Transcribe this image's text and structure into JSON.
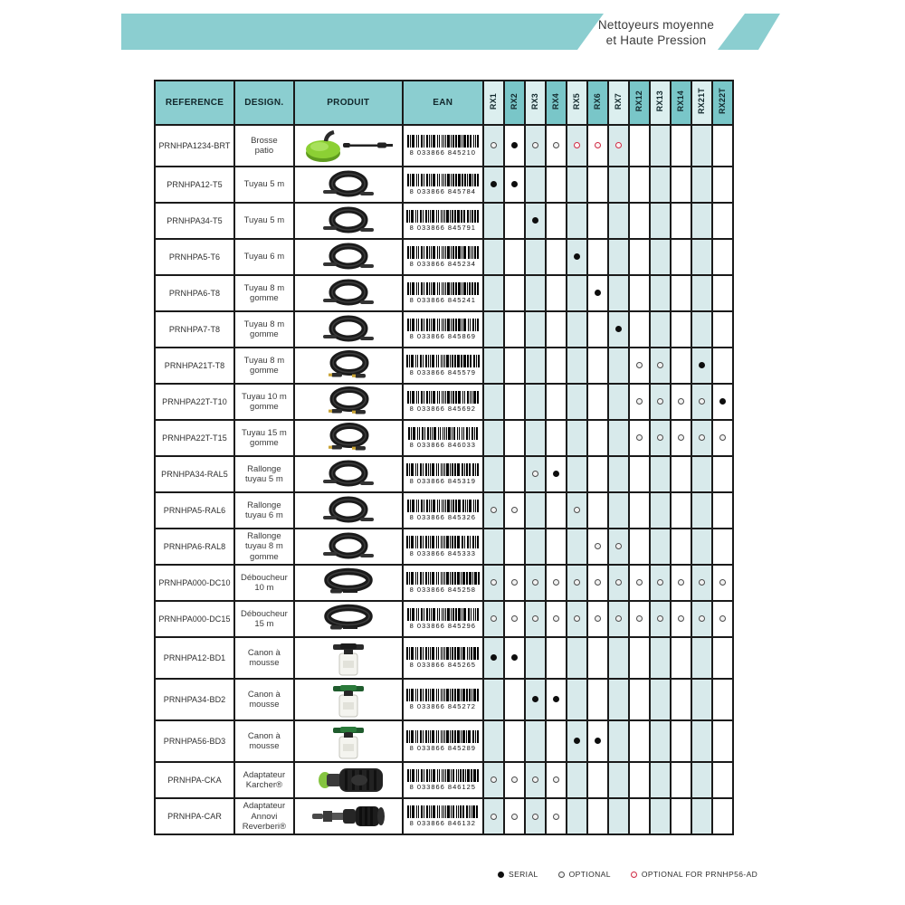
{
  "banner": {
    "title_line1": "Nettoyeurs moyenne",
    "title_line2": "et Haute Pression"
  },
  "colors": {
    "banner_teal": "#8bced0",
    "header_teal": "#8bced0",
    "rx_header_dark": "#79c6c8",
    "rx_header_light": "#dcefef",
    "column_stripe": "#d8eaeb",
    "marker_red": "#cf2c46",
    "marker_black": "#0e0e0e"
  },
  "table": {
    "headers": {
      "reference": "REFERENCE",
      "design": "DESIGN.",
      "produit": "PRODUIT",
      "ean": "EAN"
    },
    "rx_columns": [
      "RX1",
      "RX2",
      "RX3",
      "RX4",
      "RX5",
      "RX6",
      "RX7",
      "RX12",
      "RX13",
      "RX14",
      "RX21T",
      "RX22T"
    ],
    "rows": [
      {
        "reference": "PRNHPA1234-BRT",
        "design": "Brosse patio",
        "image": "patio-brush",
        "ean": "8 033866 845210",
        "marks": [
          "optional",
          "serial",
          "optional",
          "optional",
          "optional-ad",
          "optional-ad",
          "optional-ad",
          "",
          "",
          "",
          "",
          ""
        ]
      },
      {
        "reference": "PRNHPA12-T5",
        "design": "Tuyau 5 m",
        "image": "hose-coil",
        "ean": "8 033866 845784",
        "marks": [
          "serial",
          "serial",
          "",
          "",
          "",
          "",
          "",
          "",
          "",
          "",
          "",
          ""
        ]
      },
      {
        "reference": "PRNHPA34-T5",
        "design": "Tuyau 5 m",
        "image": "hose-coil",
        "ean": "8 033866 845791",
        "marks": [
          "",
          "",
          "serial",
          "",
          "",
          "",
          "",
          "",
          "",
          "",
          "",
          ""
        ]
      },
      {
        "reference": "PRNHPA5-T6",
        "design": "Tuyau 6 m",
        "image": "hose-coil",
        "ean": "8 033866 845234",
        "marks": [
          "",
          "",
          "",
          "",
          "serial",
          "",
          "",
          "",
          "",
          "",
          "",
          ""
        ]
      },
      {
        "reference": "PRNHPA6-T8",
        "design": "Tuyau 8 m gomme",
        "image": "hose-coil",
        "ean": "8 033866 845241",
        "marks": [
          "",
          "",
          "",
          "",
          "",
          "serial",
          "",
          "",
          "",
          "",
          "",
          ""
        ]
      },
      {
        "reference": "PRNHPA7-T8",
        "design": "Tuyau 8 m gomme",
        "image": "hose-coil",
        "ean": "8 033866 845869",
        "marks": [
          "",
          "",
          "",
          "",
          "",
          "",
          "serial",
          "",
          "",
          "",
          "",
          ""
        ]
      },
      {
        "reference": "PRNHPA21T-T8",
        "design": "Tuyau 8 m gomme",
        "image": "hose-coil-t",
        "ean": "8 033866 845579",
        "marks": [
          "",
          "",
          "",
          "",
          "",
          "",
          "",
          "optional",
          "optional",
          "",
          "serial",
          ""
        ]
      },
      {
        "reference": "PRNHPA22T-T10",
        "design": "Tuyau 10 m gomme",
        "image": "hose-coil-t",
        "ean": "8 033866 845692",
        "marks": [
          "",
          "",
          "",
          "",
          "",
          "",
          "",
          "optional",
          "optional",
          "optional",
          "optional",
          "serial"
        ]
      },
      {
        "reference": "PRNHPA22T-T15",
        "design": "Tuyau 15 m gomme",
        "image": "hose-coil-t",
        "ean": "8 033866 846033",
        "marks": [
          "",
          "",
          "",
          "",
          "",
          "",
          "",
          "optional",
          "optional",
          "optional",
          "optional",
          "optional"
        ]
      },
      {
        "reference": "PRNHPA34-RAL5",
        "design": "Rallonge tuyau 5 m",
        "image": "hose-coil",
        "ean": "8 033866 845319",
        "marks": [
          "",
          "",
          "optional",
          "serial",
          "",
          "",
          "",
          "",
          "",
          "",
          "",
          ""
        ]
      },
      {
        "reference": "PRNHPA5-RAL6",
        "design": "Rallonge tuyau 6 m",
        "image": "hose-coil",
        "ean": "8 033866 845326",
        "marks": [
          "optional",
          "optional",
          "",
          "",
          "optional",
          "",
          "",
          "",
          "",
          "",
          "",
          ""
        ]
      },
      {
        "reference": "PRNHPA6-RAL8",
        "design": "Rallonge tuyau 8 m gomme",
        "image": "hose-coil",
        "ean": "8 033866 845333",
        "marks": [
          "",
          "",
          "",
          "",
          "",
          "optional",
          "optional",
          "",
          "",
          "",
          "",
          ""
        ]
      },
      {
        "reference": "PRNHPA000-DC10",
        "design": "Déboucheur 10 m",
        "image": "hose-flat",
        "ean": "8 033866 845258",
        "marks": [
          "optional",
          "optional",
          "optional",
          "optional",
          "optional",
          "optional",
          "optional",
          "optional",
          "optional",
          "optional",
          "optional",
          "optional"
        ]
      },
      {
        "reference": "PRNHPA000-DC15",
        "design": "Déboucheur 15 m",
        "image": "hose-flat",
        "ean": "8 033866 845296",
        "marks": [
          "optional",
          "optional",
          "optional",
          "optional",
          "optional",
          "optional",
          "optional",
          "optional",
          "optional",
          "optional",
          "optional",
          "optional"
        ]
      },
      {
        "reference": "PRNHPA12-BD1",
        "design": "Canon à mousse",
        "image": "foam-cannon",
        "ean": "8 033866 845265",
        "marks": [
          "serial",
          "serial",
          "",
          "",
          "",
          "",
          "",
          "",
          "",
          "",
          "",
          ""
        ]
      },
      {
        "reference": "PRNHPA34-BD2",
        "design": "Canon à mousse",
        "image": "foam-cannon-green",
        "ean": "8 033866 845272",
        "marks": [
          "",
          "",
          "serial",
          "serial",
          "",
          "",
          "",
          "",
          "",
          "",
          "",
          ""
        ]
      },
      {
        "reference": "PRNHPA56-BD3",
        "design": "Canon à mousse",
        "image": "foam-cannon-green",
        "ean": "8 033866 845289",
        "marks": [
          "",
          "",
          "",
          "",
          "serial",
          "serial",
          "",
          "",
          "",
          "",
          "",
          ""
        ]
      },
      {
        "reference": "PRNHPA-CKA",
        "design": "Adaptateur Karcher®",
        "image": "adapter-karcher",
        "ean": "8 033866 846125",
        "marks": [
          "optional",
          "optional",
          "optional",
          "optional",
          "",
          "",
          "",
          "",
          "",
          "",
          "",
          ""
        ]
      },
      {
        "reference": "PRNHPA-CAR",
        "design": "Adaptateur Annovi Reverberi®",
        "image": "adapter-ar",
        "ean": "8 033866 846132",
        "marks": [
          "optional",
          "optional",
          "optional",
          "optional",
          "",
          "",
          "",
          "",
          "",
          "",
          "",
          ""
        ]
      }
    ]
  },
  "legend": [
    {
      "type": "serial",
      "label": "SERIAL"
    },
    {
      "type": "optional",
      "label": "OPTIONAL"
    },
    {
      "type": "optional-ad",
      "label": "OPTIONAL FOR PRNHP56-AD"
    }
  ]
}
